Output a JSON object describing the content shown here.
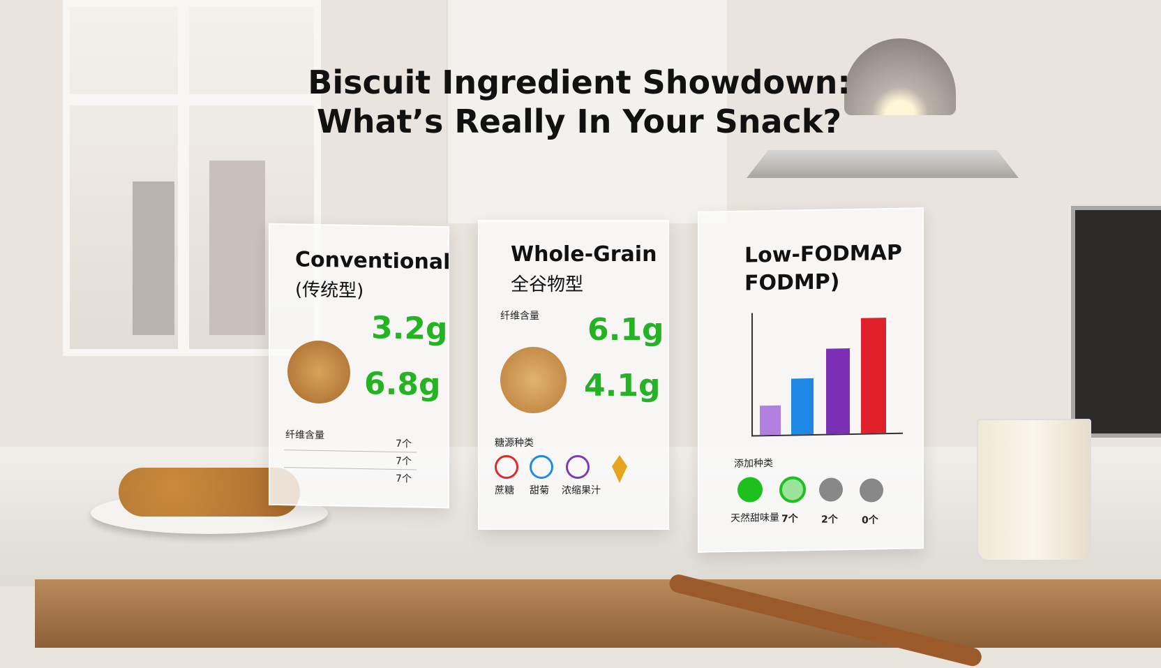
{
  "header": {
    "title_line1": "Biscuit Ingredient Showdown:",
    "title_line2": "What’s Really In Your Snack?"
  },
  "cards": [
    {
      "title": "Conventional",
      "subtitle": "(传统型)",
      "amounts": [
        "3.2g",
        "6.8g"
      ],
      "table_label": "纤维含量",
      "counts": [
        "7个",
        "7个",
        "7个"
      ]
    },
    {
      "title": "Whole-Grain",
      "subtitle": "全谷物型",
      "label": "纤维含量",
      "amounts": [
        "6.1g",
        "4.1g"
      ],
      "section": "糖源种类",
      "icon_labels": [
        "蔗糖",
        "甜菊",
        "浓缩果汁"
      ]
    },
    {
      "title": "Low-FODMAP",
      "subtitle": "FODMP)",
      "section": "添加种类",
      "row_label": "天然甜味量",
      "counts": [
        "7个",
        "2个",
        "0个"
      ]
    }
  ]
}
